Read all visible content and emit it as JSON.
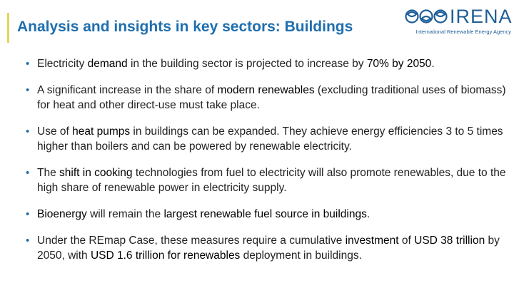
{
  "title": "Analysis and insights in key sectors: Buildings",
  "logo": {
    "name": "IRENA",
    "subtitle": "International Renewable Energy Agency",
    "mark_icon": "irena-mark-icon"
  },
  "colors": {
    "title": "#1f6fae",
    "accent_bar": "#e4d55a",
    "bullet": "#1f6fae",
    "logo": "#1f5e97"
  },
  "bullets": [
    {
      "segments": [
        "Electricity ",
        "demand",
        " in the building sector is projected to increase by ",
        "70% by 2050",
        "."
      ]
    },
    {
      "segments": [
        "A significant increase in the share of ",
        "modern renewables",
        " (excluding traditional uses of biomass) for heat and other direct-use must take place."
      ]
    },
    {
      "segments": [
        "Use of ",
        "heat pumps",
        " in buildings can be expanded. They achieve energy efficiencies 3 to 5 times higher than boilers and can be powered by renewable electricity."
      ]
    },
    {
      "segments": [
        "The ",
        "shift in cooking",
        " technologies from fuel to electricity will also promote renewables, due to the high share of renewable power in electricity supply."
      ]
    },
    {
      "segments": [
        "Bioenergy",
        " will remain the ",
        "largest renewable fuel source in buildings",
        "."
      ]
    },
    {
      "segments": [
        "Under the REmap Case, these measures require a cumulative ",
        "investment",
        " of ",
        "USD 38 trillion",
        " by 2050, with ",
        "USD 1.6 trillion for renewables",
        " deployment in buildings."
      ]
    }
  ]
}
